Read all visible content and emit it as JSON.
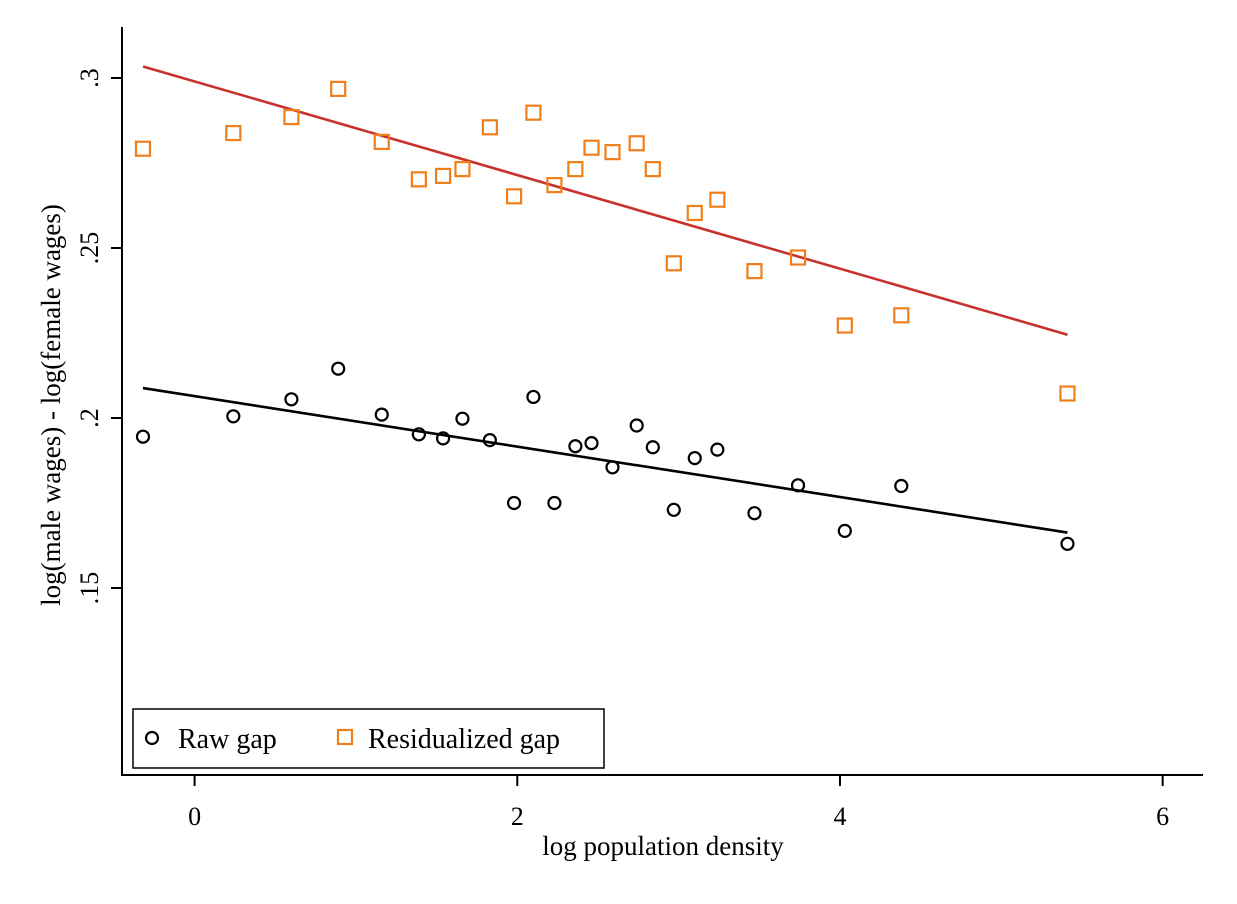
{
  "chart_data": {
    "type": "scatter",
    "xlabel": "log population density",
    "ylabel": "log(male wages) - log(female wages)",
    "xlim": [
      -0.45,
      6.25
    ],
    "ylim": [
      0.095,
      0.315
    ],
    "x_ticks": [
      0,
      2,
      4,
      6
    ],
    "x_tick_labels": [
      "0",
      "2",
      "4",
      "6"
    ],
    "y_ticks": [
      0.15,
      0.2,
      0.25,
      0.3
    ],
    "y_tick_labels": [
      ".15",
      ".2",
      ".25",
      ".3"
    ],
    "grid": false,
    "legend_position": "bottom-left",
    "series": [
      {
        "name": "Raw gap",
        "marker": "hollow-circle",
        "color": "#000000",
        "points": [
          [
            -0.32,
            0.1945
          ],
          [
            0.24,
            0.2005
          ],
          [
            0.6,
            0.2055
          ],
          [
            0.89,
            0.2145
          ],
          [
            1.16,
            0.201
          ],
          [
            1.39,
            0.1952
          ],
          [
            1.54,
            0.194
          ],
          [
            1.66,
            0.1998
          ],
          [
            1.83,
            0.1935
          ],
          [
            1.98,
            0.175
          ],
          [
            2.1,
            0.2062
          ],
          [
            2.23,
            0.175
          ],
          [
            2.36,
            0.1917
          ],
          [
            2.46,
            0.1926
          ],
          [
            2.59,
            0.1855
          ],
          [
            2.74,
            0.1978
          ],
          [
            2.84,
            0.1914
          ],
          [
            2.97,
            0.173
          ],
          [
            3.1,
            0.1882
          ],
          [
            3.24,
            0.1907
          ],
          [
            3.47,
            0.172
          ],
          [
            3.74,
            0.1802
          ],
          [
            4.03,
            0.1668
          ],
          [
            4.38,
            0.18
          ],
          [
            5.41,
            0.163
          ]
        ]
      },
      {
        "name": "Residualized gap",
        "marker": "hollow-square",
        "color": "#f07f1b",
        "points": [
          [
            -0.32,
            0.2792
          ],
          [
            0.24,
            0.2838
          ],
          [
            0.6,
            0.2885
          ],
          [
            0.89,
            0.2968
          ],
          [
            1.16,
            0.2812
          ],
          [
            1.39,
            0.2702
          ],
          [
            1.54,
            0.2712
          ],
          [
            1.66,
            0.2732
          ],
          [
            1.83,
            0.2855
          ],
          [
            1.98,
            0.2652
          ],
          [
            2.1,
            0.2898
          ],
          [
            2.23,
            0.2685
          ],
          [
            2.36,
            0.2732
          ],
          [
            2.46,
            0.2795
          ],
          [
            2.59,
            0.2782
          ],
          [
            2.74,
            0.2808
          ],
          [
            2.84,
            0.2732
          ],
          [
            2.97,
            0.2455
          ],
          [
            3.1,
            0.2603
          ],
          [
            3.24,
            0.2642
          ],
          [
            3.47,
            0.2432
          ],
          [
            3.74,
            0.2472
          ],
          [
            4.03,
            0.2272
          ],
          [
            4.38,
            0.2302
          ],
          [
            5.41,
            0.2072
          ]
        ]
      }
    ],
    "fit_lines": [
      {
        "for_series": "Raw gap",
        "color": "#000000",
        "x": [
          -0.32,
          5.41
        ],
        "y": [
          0.2088,
          0.1663
        ]
      },
      {
        "for_series": "Residualized gap",
        "color": "#c8322d",
        "x": [
          -0.32,
          5.41
        ],
        "y": [
          0.3034,
          0.2245
        ]
      }
    ]
  }
}
